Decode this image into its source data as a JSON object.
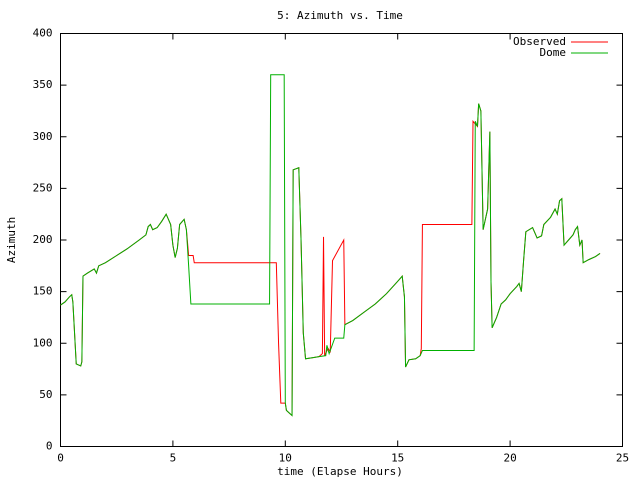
{
  "chart_data": {
    "type": "line",
    "title": "5: Azimuth vs. Time",
    "x_label": "time (Elapse Hours)",
    "y_label": "Azimuth",
    "xlim": [
      0,
      25
    ],
    "xticks": [
      0,
      5,
      10,
      15,
      20,
      25
    ],
    "ylim": [
      0,
      400
    ],
    "yticks": [
      0,
      50,
      100,
      150,
      200,
      250,
      300,
      350,
      400
    ],
    "legend": "top-right",
    "series": [
      {
        "name": "Observed",
        "color": "#ff0000",
        "x": [
          0,
          0.2,
          0.4,
          0.5,
          0.55,
          0.6,
          0.65,
          0.7,
          0.9,
          0.95,
          1.0,
          1.2,
          1.5,
          1.6,
          1.7,
          2,
          2.5,
          3,
          3.5,
          3.8,
          3.9,
          4,
          4.1,
          4.3,
          4.5,
          4.7,
          4.8,
          4.9,
          5,
          5.1,
          5.2,
          5.3,
          5.5,
          5.6,
          5.7,
          5.9,
          5.95,
          9.6,
          9.7,
          9.8,
          10.0,
          10.05,
          10.2,
          10.3,
          10.35,
          10.6,
          10.7,
          10.8,
          10.9,
          11.2,
          11.5,
          11.65,
          11.7,
          11.75,
          11.9,
          12.0,
          12.1,
          12.6,
          12.65,
          13,
          13.5,
          14,
          14.5,
          15,
          15.2,
          15.3,
          15.35,
          15.5,
          15.8,
          16.0,
          16.05,
          16.1,
          18.3,
          18.35,
          18.55,
          18.6,
          18.7,
          18.8,
          19.0,
          19.1,
          19.15,
          19.2,
          19.4,
          19.6,
          19.8,
          20,
          20.3,
          20.4,
          20.5,
          20.6,
          20.7,
          21,
          21.2,
          21.4,
          21.5,
          21.8,
          22,
          22.1,
          22.2,
          22.3,
          22.4,
          22.6,
          22.8,
          22.9,
          23.0,
          23.1,
          23.2,
          23.25,
          23.5,
          23.8,
          24.0
        ],
        "values": [
          137,
          140,
          145,
          147,
          140,
          120,
          100,
          80,
          78,
          82,
          165,
          168,
          172,
          168,
          175,
          178,
          185,
          192,
          200,
          205,
          213,
          215,
          210,
          212,
          218,
          225,
          220,
          215,
          195,
          183,
          192,
          215,
          220,
          210,
          185,
          185,
          178,
          178,
          100,
          42,
          42,
          35,
          32,
          30,
          268,
          270,
          200,
          110,
          85,
          86,
          87,
          90,
          203,
          88,
          95,
          92,
          180,
          200,
          118,
          122,
          130,
          138,
          148,
          160,
          165,
          145,
          77,
          84,
          85,
          88,
          95,
          215,
          215,
          315,
          310,
          332,
          325,
          210,
          230,
          305,
          160,
          115,
          125,
          138,
          142,
          148,
          155,
          158,
          150,
          180,
          208,
          212,
          202,
          204,
          215,
          222,
          230,
          225,
          238,
          240,
          195,
          200,
          205,
          210,
          213,
          195,
          200,
          178,
          181,
          184,
          187
        ]
      },
      {
        "name": "Dome",
        "color": "#00b000",
        "x": [
          0,
          0.2,
          0.4,
          0.5,
          0.55,
          0.6,
          0.65,
          0.7,
          0.9,
          0.95,
          1.0,
          1.2,
          1.5,
          1.6,
          1.7,
          2,
          2.5,
          3,
          3.5,
          3.8,
          3.9,
          4,
          4.1,
          4.3,
          4.5,
          4.7,
          4.8,
          4.9,
          5,
          5.1,
          5.2,
          5.3,
          5.5,
          5.6,
          5.7,
          5.8,
          9.3,
          9.35,
          9.95,
          10.0,
          10.05,
          10.2,
          10.3,
          10.35,
          10.6,
          10.7,
          10.8,
          10.9,
          11.2,
          11.5,
          11.8,
          11.85,
          11.95,
          12.2,
          12.6,
          12.65,
          13,
          13.5,
          14,
          14.5,
          15,
          15.2,
          15.3,
          15.35,
          15.5,
          15.8,
          16.0,
          16.1,
          18.4,
          18.45,
          18.55,
          18.6,
          18.7,
          18.8,
          19.0,
          19.1,
          19.15,
          19.2,
          19.4,
          19.6,
          19.8,
          20,
          20.3,
          20.4,
          20.5,
          20.6,
          20.7,
          21,
          21.2,
          21.4,
          21.5,
          21.8,
          22,
          22.1,
          22.2,
          22.3,
          22.4,
          22.6,
          22.8,
          22.9,
          23.0,
          23.1,
          23.2,
          23.25,
          23.5,
          23.8,
          24.0
        ],
        "values": [
          137,
          140,
          145,
          147,
          140,
          120,
          100,
          80,
          78,
          82,
          165,
          168,
          172,
          168,
          175,
          178,
          185,
          192,
          200,
          205,
          213,
          215,
          210,
          212,
          218,
          225,
          220,
          215,
          195,
          183,
          192,
          215,
          220,
          210,
          175,
          138,
          138,
          360,
          360,
          42,
          35,
          32,
          30,
          268,
          270,
          200,
          110,
          85,
          86,
          87,
          88,
          98,
          90,
          105,
          105,
          118,
          122,
          130,
          138,
          148,
          160,
          165,
          145,
          77,
          84,
          85,
          88,
          93,
          93,
          315,
          310,
          332,
          325,
          210,
          230,
          305,
          160,
          115,
          125,
          138,
          142,
          148,
          155,
          158,
          150,
          180,
          208,
          212,
          202,
          204,
          215,
          222,
          230,
          225,
          238,
          240,
          195,
          200,
          205,
          210,
          213,
          195,
          200,
          178,
          181,
          184,
          187
        ]
      }
    ]
  }
}
